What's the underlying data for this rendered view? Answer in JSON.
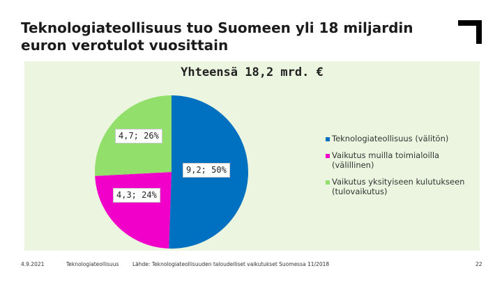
{
  "slide": {
    "title": "Teknologiateollisuus tuo Suomeen yli 18 miljardin euron verotulot vuosittain"
  },
  "chart_data": {
    "type": "pie",
    "title": "Yhteensä 18,2 mrd. €",
    "slices": [
      {
        "name": "Teknologiateollisuus (välitön)",
        "value": 9.2,
        "percent": 50,
        "label": "9,2; 50%",
        "color": "#0070c0"
      },
      {
        "name": "Vaikutus muilla toimialoilla (välillinen)",
        "value": 4.3,
        "percent": 24,
        "label": "4,3; 24%",
        "color": "#f000c8"
      },
      {
        "name": "Vaikutus yksityiseen kulutukseen (tulovaikutus)",
        "value": 4.7,
        "percent": 26,
        "label": "4,7; 26%",
        "color": "#92e06b"
      }
    ],
    "legend_position": "right"
  },
  "footer": {
    "date": "4.9.2021",
    "org": "Teknologiateollisuus",
    "source": "Lähde: Teknologiateollisuuden taloudelliset vaikutukset Suomessa 11/2018",
    "page": "22"
  }
}
